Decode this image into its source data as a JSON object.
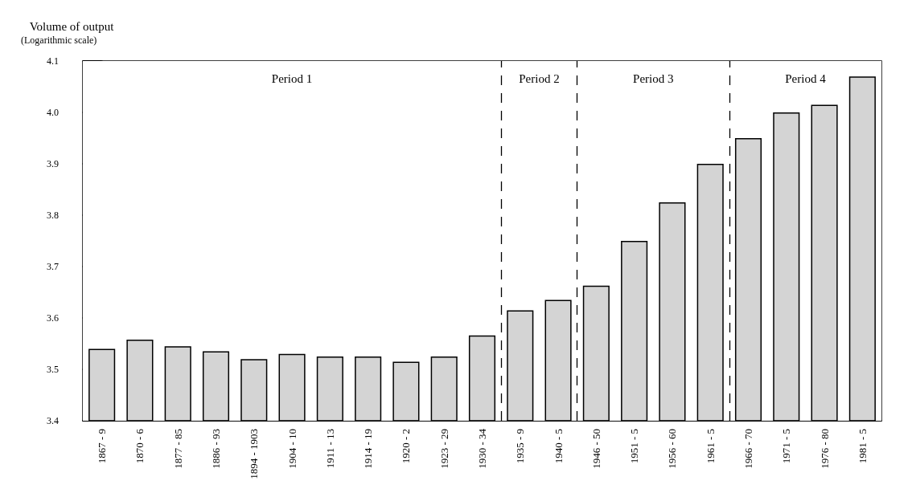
{
  "chart_data": {
    "type": "bar",
    "ylabel": "Volume of output",
    "annotations": [
      "(Logarithmic scale)"
    ],
    "categories": [
      "1867 - 9",
      "1870 - 6",
      "1877 - 85",
      "1886 - 93",
      "1894 - 1903",
      "1904 - 10",
      "1911 - 13",
      "1914 - 19",
      "1920 - 2",
      "1923 - 29",
      "1930 - 34",
      "1935 - 9",
      "1940 - 5",
      "1946 - 50",
      "1951 - 5",
      "1956 - 60",
      "1961 - 5",
      "1966 - 70",
      "1971 - 5",
      "1976 - 80",
      "1981 - 5"
    ],
    "values": [
      3.54,
      3.558,
      3.545,
      3.535,
      3.52,
      3.53,
      3.525,
      3.525,
      3.515,
      3.525,
      3.566,
      3.615,
      3.635,
      3.663,
      3.75,
      3.825,
      3.9,
      3.95,
      4.0,
      4.015,
      4.07
    ],
    "color": "#d4d4d4",
    "ylim": [
      3.4,
      4.1
    ],
    "yticks": [
      3.4,
      3.5,
      3.6,
      3.7,
      3.8,
      3.9,
      {
        "value": 4,
        "label": "4.0"
      },
      4.1
    ],
    "bands": [
      {
        "axis": "x",
        "from": "1867 - 9",
        "to": "1930 - 34",
        "label": "Period 1",
        "color": "#ffffff"
      },
      {
        "axis": "x",
        "from": "1935 - 9",
        "to": "1940 - 5",
        "label": "Period 2",
        "color": "#ffffff"
      },
      {
        "axis": "x",
        "from": "1946 - 50",
        "to": "1961 - 5",
        "label": "Period 3",
        "color": "#ffffff"
      },
      {
        "axis": "x",
        "from": "1966 - 70",
        "to": "1981 - 5",
        "label": "Period 4",
        "color": "#ffffff"
      }
    ],
    "grid": false
  }
}
